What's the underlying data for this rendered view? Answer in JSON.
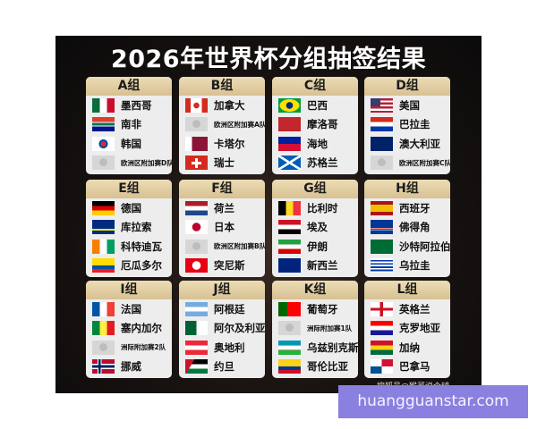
{
  "title": "2026年世界杯分组抽签结果",
  "credit": "搜狐号@猴哥说个球",
  "watermark": "huangguanstar.com",
  "groups": [
    {
      "label": "A组",
      "teams": [
        {
          "name": "墨西哥",
          "flag": "mexico-flag-icon"
        },
        {
          "name": "南非",
          "flag": "south-africa-flag-icon"
        },
        {
          "name": "韩国",
          "flag": "korea-flag-icon"
        },
        {
          "name": "欧洲区附加赛D队",
          "flag": "placeholder-icon"
        }
      ]
    },
    {
      "label": "B组",
      "teams": [
        {
          "name": "加拿大",
          "flag": "canada-flag-icon"
        },
        {
          "name": "欧洲区附加赛A队",
          "flag": "placeholder-icon"
        },
        {
          "name": "卡塔尔",
          "flag": "qatar-flag-icon"
        },
        {
          "name": "瑞士",
          "flag": "switzerland-flag-icon"
        }
      ]
    },
    {
      "label": "C组",
      "teams": [
        {
          "name": "巴西",
          "flag": "brazil-flag-icon"
        },
        {
          "name": "摩洛哥",
          "flag": "morocco-flag-icon"
        },
        {
          "name": "海地",
          "flag": "haiti-flag-icon"
        },
        {
          "name": "苏格兰",
          "flag": "scotland-flag-icon"
        }
      ]
    },
    {
      "label": "D组",
      "teams": [
        {
          "name": "美国",
          "flag": "usa-flag-icon"
        },
        {
          "name": "巴拉圭",
          "flag": "paraguay-flag-icon"
        },
        {
          "name": "澳大利亚",
          "flag": "australia-flag-icon"
        },
        {
          "name": "欧洲区附加赛C队",
          "flag": "placeholder-icon"
        }
      ]
    },
    {
      "label": "E组",
      "teams": [
        {
          "name": "德国",
          "flag": "germany-flag-icon"
        },
        {
          "name": "库拉索",
          "flag": "curacao-flag-icon"
        },
        {
          "name": "科特迪瓦",
          "flag": "ivory-coast-flag-icon"
        },
        {
          "name": "厄瓜多尔",
          "flag": "ecuador-flag-icon"
        }
      ]
    },
    {
      "label": "F组",
      "teams": [
        {
          "name": "荷兰",
          "flag": "netherlands-flag-icon"
        },
        {
          "name": "日本",
          "flag": "japan-flag-icon"
        },
        {
          "name": "欧洲区附加赛B队",
          "flag": "placeholder-icon"
        },
        {
          "name": "突尼斯",
          "flag": "tunisia-flag-icon"
        }
      ]
    },
    {
      "label": "G组",
      "teams": [
        {
          "name": "比利时",
          "flag": "belgium-flag-icon"
        },
        {
          "name": "埃及",
          "flag": "egypt-flag-icon"
        },
        {
          "name": "伊朗",
          "flag": "iran-flag-icon"
        },
        {
          "name": "新西兰",
          "flag": "new-zealand-flag-icon"
        }
      ]
    },
    {
      "label": "H组",
      "teams": [
        {
          "name": "西班牙",
          "flag": "spain-flag-icon"
        },
        {
          "name": "佛得角",
          "flag": "cape-verde-flag-icon"
        },
        {
          "name": "沙特阿拉伯",
          "flag": "saudi-flag-icon"
        },
        {
          "name": "乌拉圭",
          "flag": "uruguay-flag-icon"
        }
      ]
    },
    {
      "label": "I组",
      "teams": [
        {
          "name": "法国",
          "flag": "france-flag-icon"
        },
        {
          "name": "塞内加尔",
          "flag": "senegal-flag-icon"
        },
        {
          "name": "洲际附加赛2队",
          "flag": "placeholder-icon"
        },
        {
          "name": "挪威",
          "flag": "norway-flag-icon"
        }
      ]
    },
    {
      "label": "J组",
      "teams": [
        {
          "name": "阿根廷",
          "flag": "argentina-flag-icon"
        },
        {
          "name": "阿尔及利亚",
          "flag": "algeria-flag-icon"
        },
        {
          "name": "奥地利",
          "flag": "austria-flag-icon"
        },
        {
          "name": "约旦",
          "flag": "jordan-flag-icon"
        }
      ]
    },
    {
      "label": "K组",
      "teams": [
        {
          "name": "葡萄牙",
          "flag": "portugal-flag-icon"
        },
        {
          "name": "洲际附加赛1队",
          "flag": "placeholder-icon"
        },
        {
          "name": "乌兹别克斯坦",
          "flag": "uzbekistan-flag-icon"
        },
        {
          "name": "哥伦比亚",
          "flag": "colombia-flag-icon"
        }
      ]
    },
    {
      "label": "L组",
      "teams": [
        {
          "name": "英格兰",
          "flag": "england-flag-icon"
        },
        {
          "name": "克罗地亚",
          "flag": "croatia-flag-icon"
        },
        {
          "name": "加纳",
          "flag": "ghana-flag-icon"
        },
        {
          "name": "巴拿马",
          "flag": "panama-flag-icon"
        }
      ]
    }
  ]
}
